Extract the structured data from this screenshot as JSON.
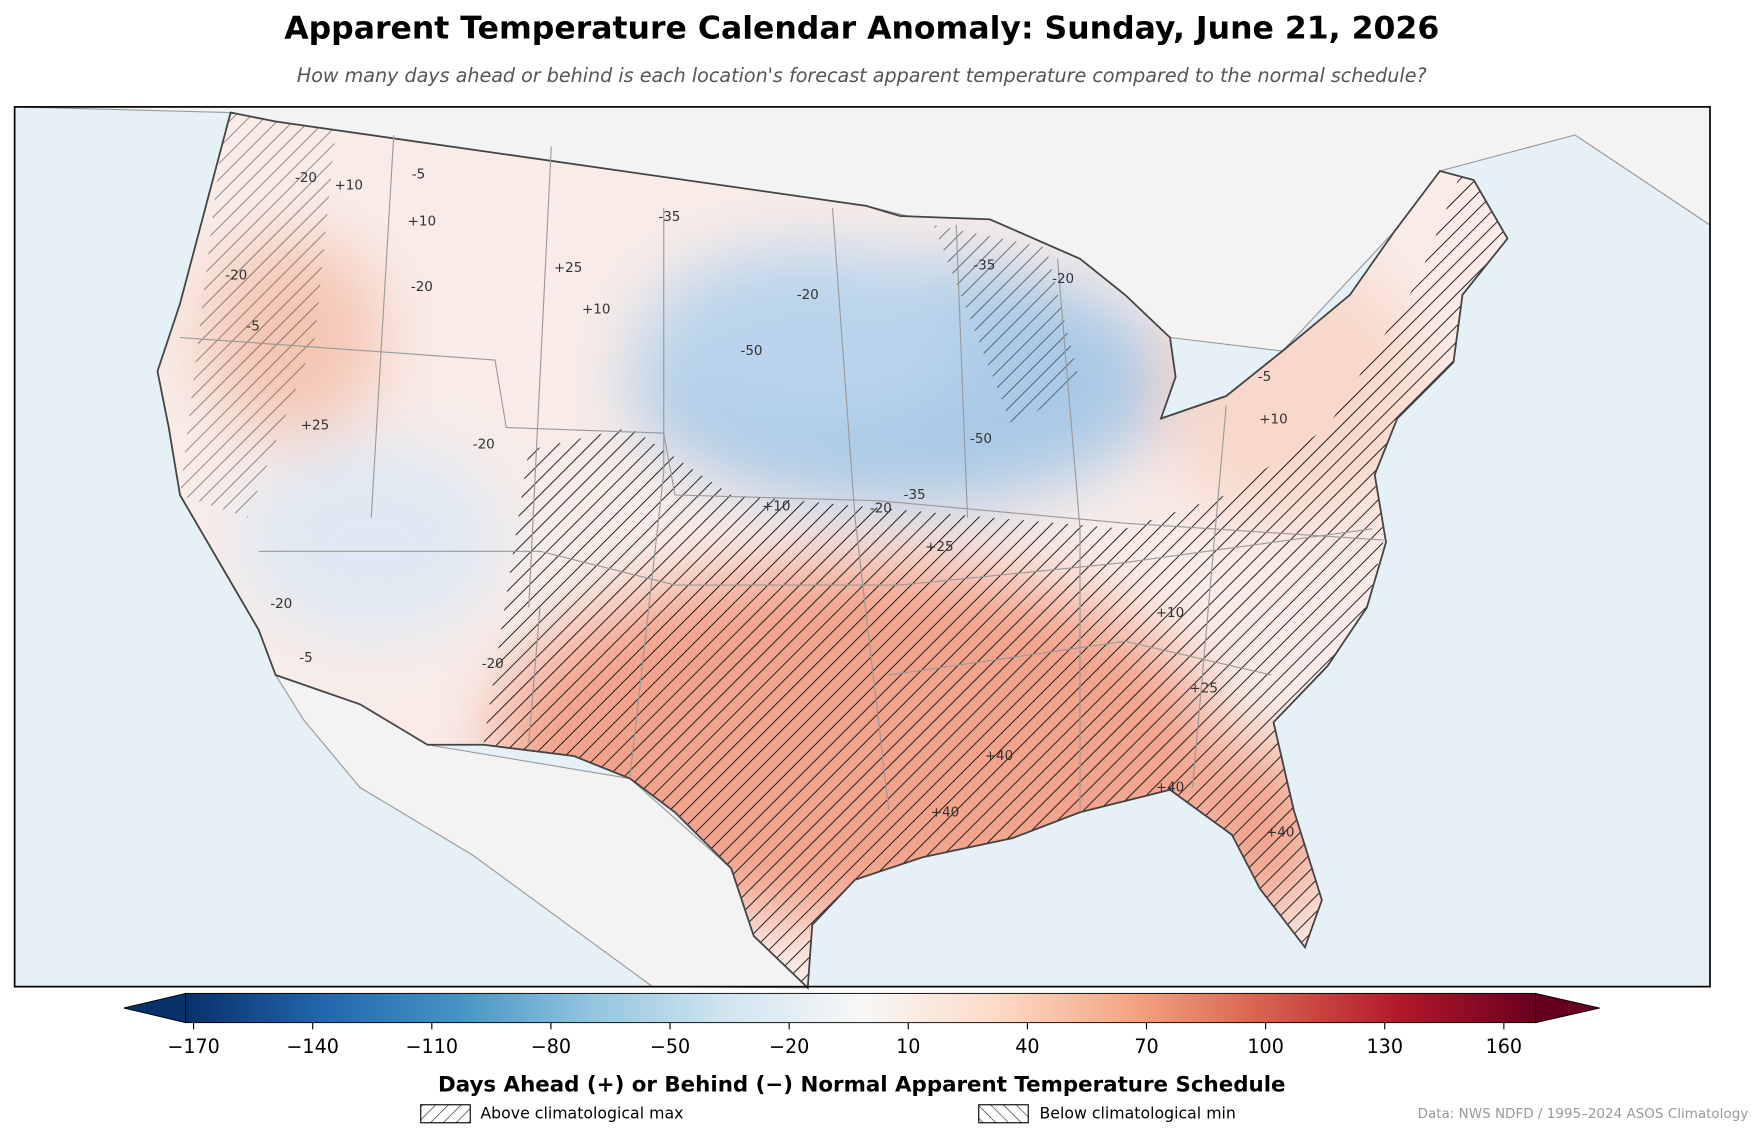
{
  "title": "Apparent Temperature Calendar Anomaly: Sunday, June 21, 2026",
  "subtitle": "How many days ahead or behind is each location's forecast apparent temperature compared to the normal schedule?",
  "contour_labels": [
    "-20",
    "+10",
    "-5",
    "+10",
    "-20",
    "-20",
    "-5",
    "+25",
    "+10",
    "-35",
    "-50",
    "-35",
    "-20",
    "-20",
    "-50",
    "-35",
    "-20",
    "+10",
    "+25",
    "+40",
    "+40",
    "+25",
    "+10",
    "-5",
    "+25",
    "-20",
    "-20",
    "-5",
    "-20",
    "+40",
    "+40",
    "+10"
  ],
  "colorbar": {
    "label": "Days Ahead (+) or Behind (−) Normal Apparent Temperature Schedule",
    "xlim": [
      -172,
      168
    ],
    "xticks": [
      {
        "value": -170,
        "label": "−170"
      },
      {
        "value": -140,
        "label": "−140"
      },
      {
        "value": -110,
        "label": "−110"
      },
      {
        "value": -80,
        "label": "−80"
      },
      {
        "value": -50,
        "label": "−50"
      },
      {
        "value": -20,
        "label": "−20"
      },
      10,
      40,
      70,
      100,
      130,
      160
    ],
    "colors": [
      "#08306b",
      "#2166ac",
      "#4393c3",
      "#92c5de",
      "#d1e5f0",
      "#f7f7f7",
      "#fddbc7",
      "#f4a582",
      "#d6604d",
      "#b2182b",
      "#67001f"
    ]
  },
  "legend": [
    "Above climatological max",
    "Below climatological min"
  ],
  "source": "Data: NWS NDFD / 1995–2024 ASOS Climatology"
}
